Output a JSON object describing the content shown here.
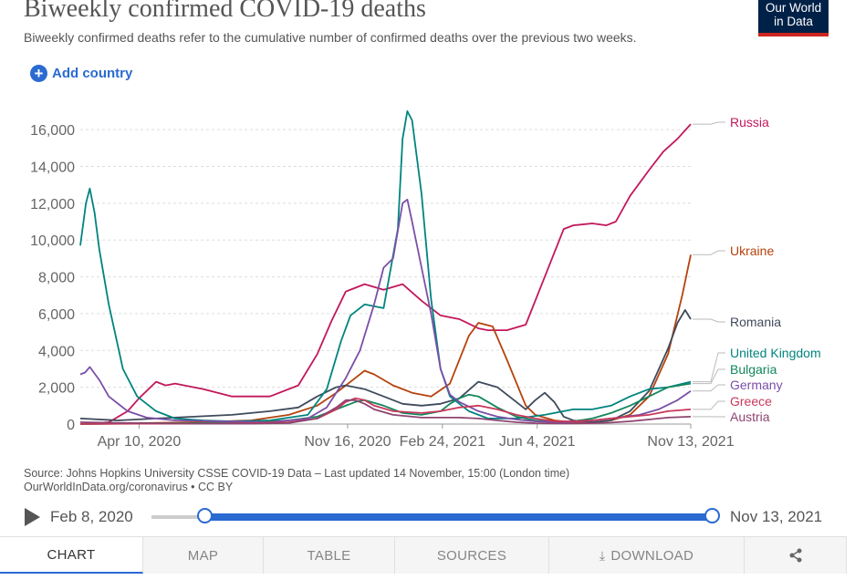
{
  "header": {
    "title": "Biweekly confirmed COVID-19 deaths",
    "subtitle": "Biweekly confirmed deaths refer to the cumulative number of confirmed deaths over the previous two weeks.",
    "logo_line1": "Our World",
    "logo_line2": "in Data",
    "add_country": "Add country"
  },
  "source": {
    "line1": "Source: Johns Hopkins University CSSE COVID-19 Data – Last updated 14 November, 15:00 (London time)",
    "line2": "OurWorldInData.org/coronavirus • CC BY"
  },
  "timeline": {
    "start_label": "Feb 8, 2020",
    "end_label": "Nov 13, 2021"
  },
  "tabs": [
    "CHART",
    "MAP",
    "TABLE",
    "SOURCES",
    "DOWNLOAD"
  ],
  "colors": {
    "accent": "#2a6ad1",
    "Russia": "#c2185b",
    "Ukraine": "#b5420d",
    "Romania": "#3f4a5c",
    "United Kingdom": "#00847e",
    "Bulgaria": "#11875c",
    "Germany": "#7b4fa8",
    "Greece": "#c8385a",
    "Austria": "#8e4470"
  },
  "chart_data": {
    "type": "line",
    "title": "Biweekly confirmed COVID-19 deaths",
    "xlabel": "",
    "ylabel": "",
    "x_domain_days": [
      0,
      644
    ],
    "x_ticks": [
      {
        "day": 62,
        "label": "Apr 10, 2020"
      },
      {
        "day": 282,
        "label": "Nov 16, 2020"
      },
      {
        "day": 382,
        "label": "Feb 24, 2021"
      },
      {
        "day": 482,
        "label": "Jun 4, 2021"
      },
      {
        "day": 644,
        "label": "Nov 13, 2021"
      }
    ],
    "y_ticks": [
      0,
      2000,
      4000,
      6000,
      8000,
      10000,
      12000,
      14000,
      16000
    ],
    "y_tick_labels": [
      "0",
      "2,000",
      "4,000",
      "6,000",
      "8,000",
      "10,000",
      "12,000",
      "14,000",
      "16,000"
    ],
    "ylim": [
      0,
      16700
    ],
    "grid": true,
    "series": [
      {
        "name": "Russia",
        "x": [
          0,
          30,
          50,
          62,
          80,
          90,
          100,
          130,
          160,
          200,
          230,
          250,
          265,
          280,
          300,
          320,
          340,
          360,
          380,
          400,
          420,
          430,
          450,
          470,
          490,
          510,
          520,
          540,
          555,
          565,
          580,
          600,
          615,
          630,
          644
        ],
        "y": [
          0,
          100,
          700,
          1400,
          2300,
          2100,
          2200,
          1900,
          1500,
          1500,
          2100,
          3800,
          5600,
          7200,
          7600,
          7300,
          7600,
          6700,
          5900,
          5700,
          5200,
          5100,
          5100,
          5400,
          8000,
          10600,
          10800,
          10900,
          10800,
          11000,
          12400,
          13800,
          14800,
          15500,
          16300
        ]
      },
      {
        "name": "Ukraine",
        "x": [
          0,
          60,
          120,
          180,
          220,
          250,
          270,
          290,
          300,
          310,
          330,
          350,
          370,
          390,
          410,
          420,
          435,
          450,
          470,
          480,
          500,
          520,
          540,
          560,
          580,
          600,
          620,
          635,
          644
        ],
        "y": [
          0,
          50,
          100,
          200,
          500,
          1000,
          1700,
          2500,
          2900,
          2700,
          2100,
          1700,
          1500,
          2200,
          4800,
          5500,
          5300,
          3500,
          1000,
          500,
          200,
          100,
          100,
          200,
          500,
          1500,
          3800,
          7000,
          9200
        ]
      },
      {
        "name": "Romania",
        "x": [
          0,
          40,
          80,
          120,
          160,
          200,
          230,
          250,
          270,
          280,
          300,
          320,
          340,
          360,
          380,
          400,
          420,
          440,
          460,
          470,
          480,
          490,
          500,
          510,
          520,
          540,
          560,
          580,
          600,
          620,
          630,
          638,
          644
        ],
        "y": [
          300,
          200,
          300,
          400,
          500,
          700,
          900,
          1500,
          2000,
          2100,
          1900,
          1500,
          1100,
          1000,
          1100,
          1400,
          2300,
          2000,
          1200,
          800,
          1300,
          1700,
          1200,
          400,
          200,
          100,
          200,
          700,
          1800,
          4100,
          5500,
          6200,
          5700
        ]
      },
      {
        "name": "United Kingdom",
        "x": [
          0,
          6,
          10,
          15,
          20,
          30,
          45,
          60,
          80,
          100,
          130,
          160,
          200,
          240,
          260,
          275,
          285,
          300,
          320,
          335,
          340,
          345,
          350,
          360,
          370,
          380,
          390,
          410,
          430,
          460,
          490,
          520,
          540,
          560,
          580,
          600,
          620,
          644
        ],
        "y": [
          9700,
          12000,
          12800,
          11500,
          9500,
          6500,
          3000,
          1500,
          700,
          300,
          200,
          150,
          200,
          500,
          1900,
          4500,
          5900,
          6500,
          6300,
          10600,
          15500,
          17000,
          16500,
          12500,
          6800,
          3000,
          1500,
          700,
          300,
          300,
          500,
          800,
          800,
          1000,
          1500,
          1900,
          2000,
          2300
        ]
      },
      {
        "name": "Bulgaria",
        "x": [
          0,
          60,
          120,
          180,
          220,
          250,
          270,
          290,
          300,
          320,
          340,
          360,
          380,
          390,
          400,
          410,
          420,
          440,
          460,
          480,
          500,
          520,
          540,
          560,
          580,
          600,
          620,
          644
        ],
        "y": [
          0,
          30,
          50,
          100,
          200,
          400,
          800,
          1200,
          1300,
          1000,
          600,
          500,
          700,
          1100,
          1400,
          1600,
          1500,
          900,
          400,
          200,
          100,
          150,
          300,
          600,
          1000,
          1500,
          2000,
          2200
        ]
      },
      {
        "name": "Germany",
        "x": [
          0,
          5,
          10,
          20,
          30,
          50,
          70,
          100,
          150,
          200,
          240,
          260,
          280,
          295,
          310,
          320,
          330,
          340,
          345,
          350,
          360,
          370,
          380,
          390,
          400,
          420,
          440,
          460,
          480,
          500,
          530,
          560,
          590,
          610,
          630,
          644
        ],
        "y": [
          2700,
          2800,
          3100,
          2400,
          1500,
          700,
          350,
          200,
          150,
          100,
          300,
          900,
          2500,
          4000,
          6500,
          8500,
          9000,
          12000,
          12200,
          11000,
          8500,
          6000,
          3000,
          1600,
          1200,
          700,
          400,
          250,
          150,
          100,
          150,
          300,
          500,
          800,
          1300,
          1800
        ]
      },
      {
        "name": "Greece",
        "x": [
          0,
          60,
          120,
          180,
          220,
          250,
          270,
          280,
          290,
          300,
          310,
          330,
          360,
          380,
          400,
          420,
          440,
          460,
          480,
          500,
          520,
          540,
          560,
          580,
          600,
          620,
          644
        ],
        "y": [
          0,
          20,
          20,
          50,
          100,
          300,
          800,
          1200,
          1400,
          1300,
          1000,
          700,
          600,
          700,
          900,
          1000,
          800,
          500,
          300,
          150,
          150,
          200,
          300,
          400,
          500,
          700,
          800
        ]
      },
      {
        "name": "Austria",
        "x": [
          0,
          60,
          120,
          180,
          220,
          250,
          270,
          280,
          290,
          300,
          310,
          330,
          360,
          380,
          400,
          420,
          440,
          460,
          480,
          500,
          520,
          540,
          560,
          580,
          600,
          620,
          644
        ],
        "y": [
          100,
          50,
          20,
          20,
          60,
          300,
          900,
          1300,
          1300,
          1100,
          800,
          500,
          350,
          350,
          350,
          300,
          200,
          100,
          50,
          30,
          30,
          50,
          80,
          150,
          250,
          350,
          400
        ]
      }
    ],
    "end_labels": [
      {
        "name": "Russia"
      },
      {
        "name": "Ukraine"
      },
      {
        "name": "Romania"
      },
      {
        "name": "United Kingdom"
      },
      {
        "name": "Bulgaria"
      },
      {
        "name": "Germany"
      },
      {
        "name": "Greece"
      },
      {
        "name": "Austria"
      }
    ]
  }
}
